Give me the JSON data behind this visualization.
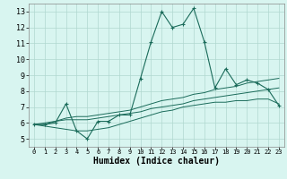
{
  "title": "",
  "xlabel": "Humidex (Indice chaleur)",
  "bg_color": "#d8f5f0",
  "grid_color": "#b0d8d0",
  "line_color": "#1a6b5a",
  "xlim": [
    -0.5,
    23.5
  ],
  "ylim": [
    4.5,
    13.5
  ],
  "xticks": [
    0,
    1,
    2,
    3,
    4,
    5,
    6,
    7,
    8,
    9,
    10,
    11,
    12,
    13,
    14,
    15,
    16,
    17,
    18,
    19,
    20,
    21,
    22,
    23
  ],
  "yticks": [
    5,
    6,
    7,
    8,
    9,
    10,
    11,
    12,
    13
  ],
  "main_y": [
    5.9,
    5.9,
    6.0,
    7.2,
    5.5,
    5.0,
    6.1,
    6.1,
    6.5,
    6.5,
    8.8,
    11.1,
    13.0,
    12.0,
    12.2,
    13.2,
    11.1,
    8.2,
    9.4,
    8.4,
    8.7,
    8.5,
    8.1,
    7.1
  ],
  "line1_y": [
    5.9,
    5.9,
    6.1,
    6.2,
    6.2,
    6.2,
    6.3,
    6.4,
    6.5,
    6.6,
    6.7,
    6.9,
    7.0,
    7.1,
    7.2,
    7.4,
    7.5,
    7.6,
    7.7,
    7.8,
    7.9,
    8.0,
    8.1,
    8.2
  ],
  "line2_y": [
    5.9,
    6.0,
    6.1,
    6.3,
    6.4,
    6.4,
    6.5,
    6.6,
    6.7,
    6.8,
    7.0,
    7.2,
    7.4,
    7.5,
    7.6,
    7.8,
    7.9,
    8.1,
    8.2,
    8.3,
    8.5,
    8.6,
    8.7,
    8.8
  ],
  "line3_y": [
    5.9,
    5.8,
    5.7,
    5.6,
    5.5,
    5.5,
    5.6,
    5.7,
    5.9,
    6.1,
    6.3,
    6.5,
    6.7,
    6.8,
    7.0,
    7.1,
    7.2,
    7.3,
    7.3,
    7.4,
    7.4,
    7.5,
    7.5,
    7.2
  ],
  "xlabel_fontsize": 7,
  "ylabel_fontsize": 6,
  "xtick_fontsize": 5,
  "ytick_fontsize": 6
}
